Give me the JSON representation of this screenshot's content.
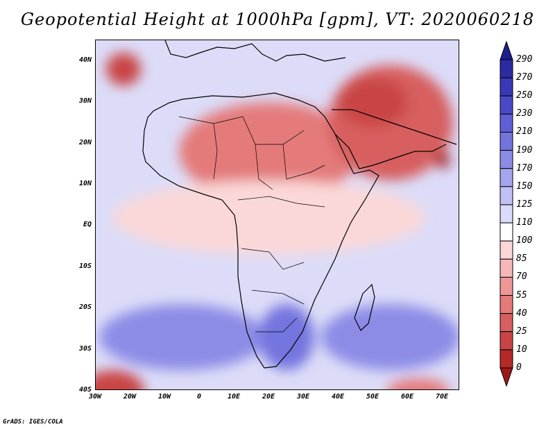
{
  "title": "Geopotential Height at 1000hPa [gpm], VT: 2020060218",
  "footer": "GrADS: IGES/COLA",
  "map": {
    "lon_range": [
      -30,
      75
    ],
    "lat_range": [
      -40,
      45
    ],
    "lat_ticks": [
      {
        "value": 40,
        "label": "40N"
      },
      {
        "value": 30,
        "label": "30N"
      },
      {
        "value": 20,
        "label": "20N"
      },
      {
        "value": 10,
        "label": "10N"
      },
      {
        "value": 0,
        "label": "EQ"
      },
      {
        "value": -10,
        "label": "10S"
      },
      {
        "value": -20,
        "label": "20S"
      },
      {
        "value": -30,
        "label": "30S"
      },
      {
        "value": -40,
        "label": "40S"
      }
    ],
    "lon_ticks": [
      {
        "value": -30,
        "label": "30W"
      },
      {
        "value": -20,
        "label": "20W"
      },
      {
        "value": -10,
        "label": "10W"
      },
      {
        "value": 0,
        "label": "0"
      },
      {
        "value": 10,
        "label": "10E"
      },
      {
        "value": 20,
        "label": "20E"
      },
      {
        "value": 30,
        "label": "30E"
      },
      {
        "value": 40,
        "label": "40E"
      },
      {
        "value": 50,
        "label": "50E"
      },
      {
        "value": 60,
        "label": "60E"
      },
      {
        "value": 70,
        "label": "70E"
      }
    ]
  },
  "colorbar": {
    "labels": [
      "290",
      "270",
      "250",
      "230",
      "210",
      "190",
      "170",
      "150",
      "125",
      "110",
      "100",
      "85",
      "70",
      "55",
      "40",
      "25",
      "10",
      "0"
    ],
    "colors": [
      "#1e1e8c",
      "#2b2ba3",
      "#3838b8",
      "#4a4ac8",
      "#5f5fd6",
      "#7474df",
      "#8c8ce7",
      "#a5a5ef",
      "#c0c0f5",
      "#dadaf9",
      "#ffffff",
      "#fbd8d8",
      "#f5b7b7",
      "#ee9797",
      "#e47a7a",
      "#d75f5f",
      "#c94444",
      "#b52929",
      "#9c1818"
    ]
  },
  "fields": [
    {
      "name": "north-africa-high",
      "lon": 20,
      "lat": 18,
      "rx": 26,
      "ry": 12,
      "level": "55"
    },
    {
      "name": "arabia-high",
      "lon": 55,
      "lat": 25,
      "rx": 18,
      "ry": 14,
      "level": "40"
    },
    {
      "name": "arabia-core",
      "lon": 50,
      "lat": 30,
      "rx": 10,
      "ry": 6,
      "level": "25"
    },
    {
      "name": "oman-core",
      "lon": 70,
      "lat": 16,
      "rx": 2,
      "ry": 2,
      "level": "0"
    },
    {
      "name": "azores-low",
      "lon": -22,
      "lat": 38,
      "rx": 5,
      "ry": 4,
      "level": "25"
    },
    {
      "name": "equatorial-band",
      "lon": 20,
      "lat": 2,
      "rx": 45,
      "ry": 9,
      "level": "100"
    },
    {
      "name": "south-atlantic-high",
      "lon": -5,
      "lat": -27,
      "rx": 24,
      "ry": 8,
      "level": "190"
    },
    {
      "name": "south-indian-high",
      "lon": 55,
      "lat": -27,
      "rx": 20,
      "ry": 8,
      "level": "190"
    },
    {
      "name": "southern-africa-high",
      "lon": 25,
      "lat": -27,
      "rx": 8,
      "ry": 8,
      "level": "210"
    },
    {
      "name": "sw-corner-low",
      "lon": -25,
      "lat": -40,
      "rx": 9,
      "ry": 5,
      "level": "25"
    },
    {
      "name": "se-corner-low",
      "lon": 63,
      "lat": -40,
      "rx": 9,
      "ry": 3,
      "level": "55"
    }
  ]
}
